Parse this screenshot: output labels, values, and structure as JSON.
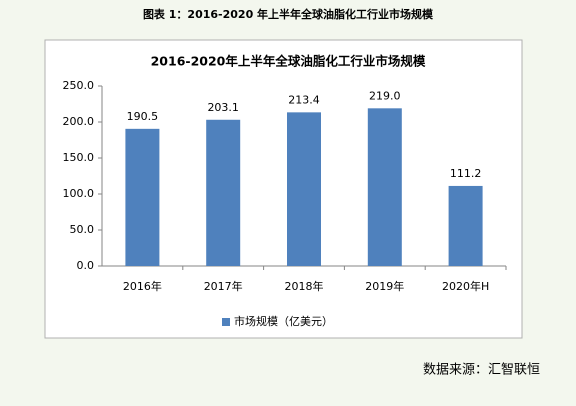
{
  "caption": "图表 1：2016-2020 年上半年全球油脂化工行业市场规模",
  "source": "数据来源：汇智联恒",
  "chart_data": {
    "type": "bar",
    "title": "2016-2020年上半年全球油脂化工行业市场规模",
    "categories": [
      "2016年",
      "2017年",
      "2018年",
      "2019年",
      "2020年H"
    ],
    "series": [
      {
        "name": "市场规模（亿美元）",
        "color": "#4f81bd",
        "values": [
          190.5,
          203.1,
          213.4,
          219.0,
          111.2
        ],
        "value_labels": [
          "190.5",
          "203.1",
          "213.4",
          "219.0",
          "111.2"
        ]
      }
    ],
    "ylim": [
      0,
      250
    ],
    "yticks": [
      {
        "value": 0,
        "label": "0.0"
      },
      {
        "value": 50,
        "label": "50.0"
      },
      {
        "value": 100,
        "label": "100.0"
      },
      {
        "value": 150,
        "label": "150.0"
      },
      {
        "value": 200,
        "label": "200.0"
      },
      {
        "value": 250,
        "label": "250.0"
      }
    ],
    "grid": false,
    "legend": "bottom"
  }
}
